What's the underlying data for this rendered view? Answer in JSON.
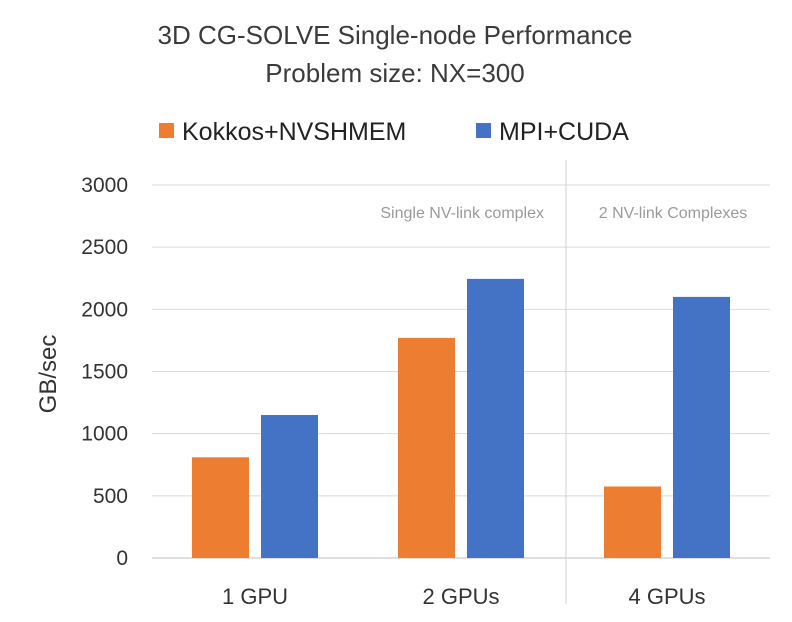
{
  "chart_data": {
    "type": "bar",
    "title": "3D CG-SOLVE Single-node Performance",
    "subtitle": "Problem size: NX=300",
    "xlabel": "",
    "ylabel": "GB/sec",
    "categories": [
      "1 GPU",
      "2 GPUs",
      "4 GPUs"
    ],
    "series": [
      {
        "name": "Kokkos+NVSHMEM",
        "color": "#ED7D31",
        "values": [
          810,
          1770,
          575
        ]
      },
      {
        "name": "MPI+CUDA",
        "color": "#4472C4",
        "values": [
          1150,
          2245,
          2100
        ]
      }
    ],
    "ylim": [
      0,
      3000
    ],
    "yticks": [
      0,
      500,
      1000,
      1500,
      2000,
      2500,
      3000
    ],
    "grid": true,
    "legend": "top-center",
    "annotations": [
      "Single NV-link complex",
      "2 NV-link Complexes"
    ]
  }
}
